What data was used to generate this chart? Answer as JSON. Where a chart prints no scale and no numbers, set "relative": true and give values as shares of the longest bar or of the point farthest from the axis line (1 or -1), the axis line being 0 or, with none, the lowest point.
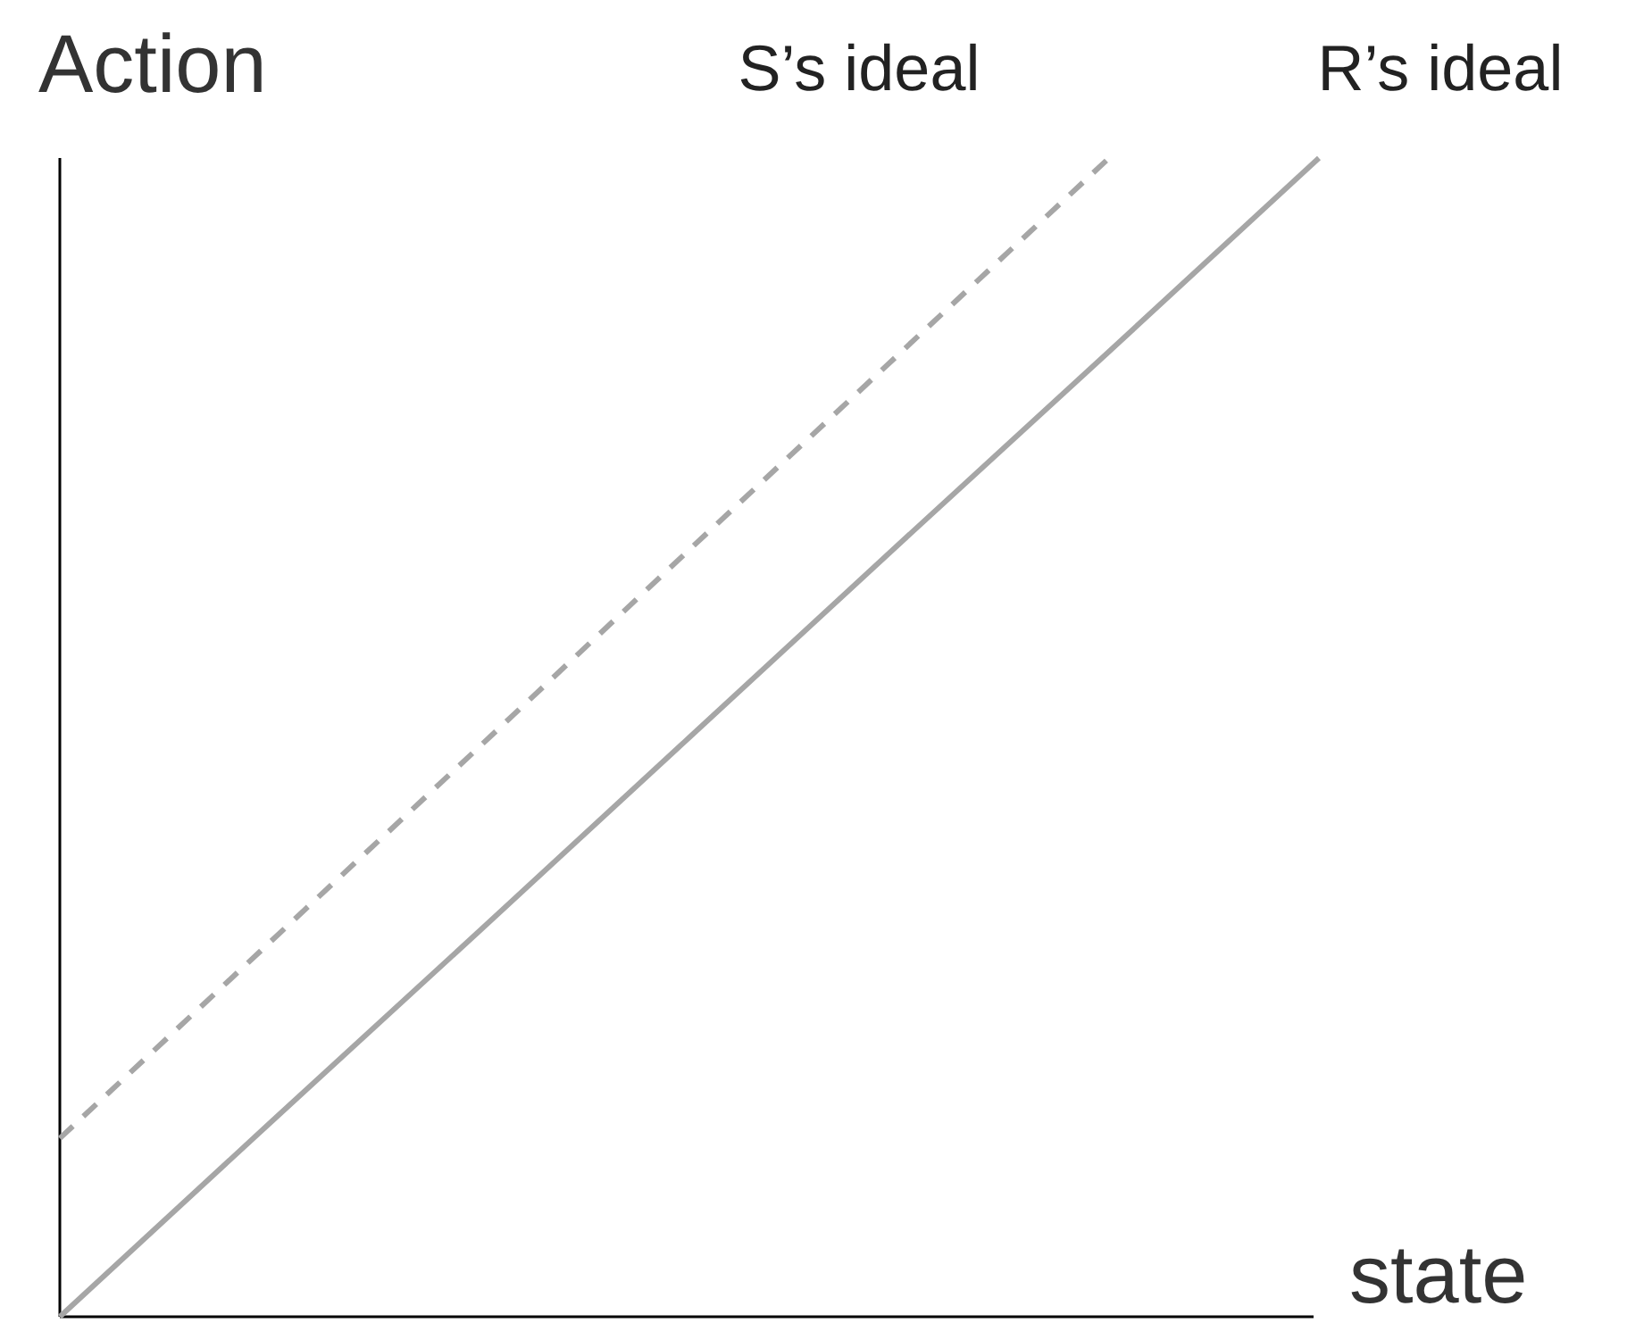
{
  "chart_data": {
    "type": "line",
    "relative": true,
    "xlabel": "state",
    "ylabel": "Action",
    "grid": false,
    "categories": [
      null,
      null,
      null,
      null,
      null,
      null,
      null
    ],
    "series": [
      {
        "name": "S’s ideal",
        "color": "#a6a6a6",
        "line_style": "dashed",
        "values": [
          0.154,
          0.323,
          0.492,
          0.662,
          0.831,
          1.0,
          null
        ]
      },
      {
        "name": "R’s ideal",
        "color": "#a6a6a6",
        "line_style": "solid",
        "values": [
          0,
          0.167,
          0.333,
          0.5,
          0.667,
          0.833,
          1.0
        ]
      }
    ]
  }
}
